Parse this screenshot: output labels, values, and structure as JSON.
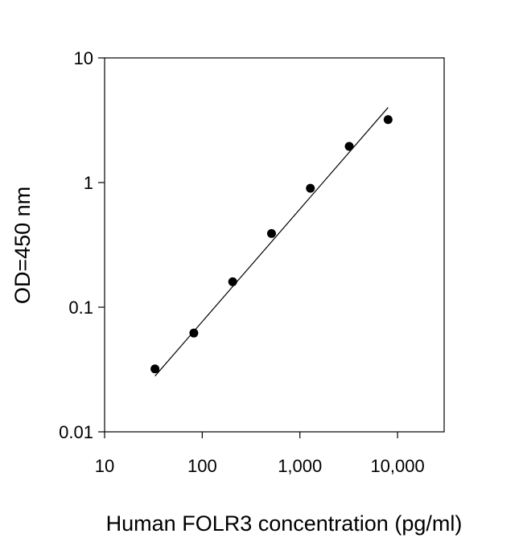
{
  "chart_data": {
    "type": "scatter",
    "title": "",
    "xlabel": "Human FOLR3 concentration (pg/ml)",
    "ylabel": "OD=450 nm",
    "xscale": "log",
    "yscale": "log",
    "xlim": [
      10,
      30000
    ],
    "ylim": [
      0.01,
      10
    ],
    "grid": false,
    "legend": "none",
    "x_ticks": [
      {
        "value": 10,
        "label": "10"
      },
      {
        "value": 100,
        "label": "100"
      },
      {
        "value": 1000,
        "label": "1,000"
      },
      {
        "value": 10000,
        "label": "10,000"
      }
    ],
    "y_ticks": [
      {
        "value": 0.01,
        "label": "0.01"
      },
      {
        "value": 0.1,
        "label": "0.1"
      },
      {
        "value": 1,
        "label": "1"
      },
      {
        "value": 10,
        "label": "10"
      }
    ],
    "series": [
      {
        "x": [
          32.8,
          82,
          205,
          512,
          1280,
          3200,
          8000
        ],
        "y": [
          0.032,
          0.062,
          0.16,
          0.39,
          0.9,
          1.95,
          3.2
        ],
        "color": "#000000"
      }
    ],
    "fit_line": {
      "x": [
        32.8,
        8000
      ],
      "y": [
        0.028,
        4.0
      ],
      "color": "#000000"
    }
  }
}
